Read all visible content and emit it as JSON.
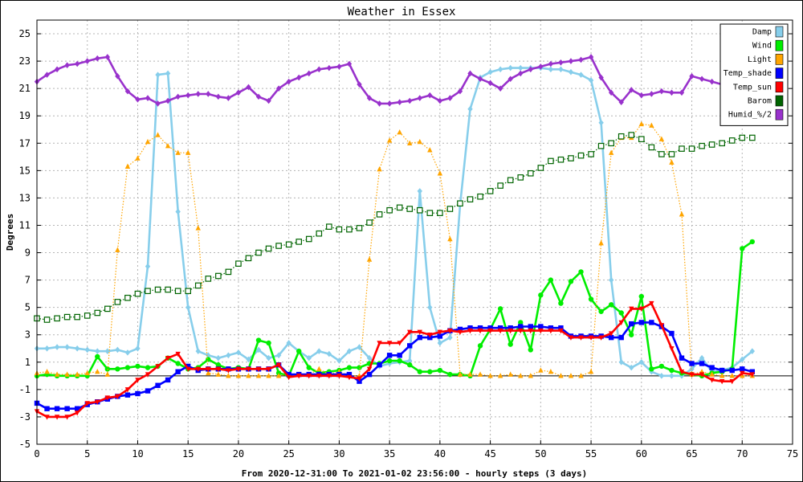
{
  "chart_data": {
    "type": "line",
    "title": "Weather in Essex",
    "xlabel": "From 2020-12-31:00 To 2021-01-02 23:56:00 - hourly steps (3 days)",
    "ylabel": "Degrees",
    "xlim": [
      0,
      75
    ],
    "ylim": [
      -5,
      26
    ],
    "x_ticks": [
      0,
      5,
      10,
      15,
      20,
      25,
      30,
      35,
      40,
      45,
      50,
      55,
      60,
      65,
      70,
      75
    ],
    "y_ticks": [
      -5,
      -3,
      -1,
      1,
      3,
      5,
      7,
      9,
      11,
      13,
      15,
      17,
      19,
      21,
      23,
      25
    ],
    "grid": true,
    "legend_position": "top-right",
    "series": [
      {
        "name": "Damp",
        "color": "#87ceeb",
        "marker": "diamond",
        "line": "solid",
        "values": [
          2.0,
          2.0,
          2.1,
          2.1,
          2.0,
          1.9,
          1.8,
          1.8,
          1.9,
          1.7,
          2.0,
          8.0,
          22.0,
          22.1,
          12.0,
          5.0,
          1.8,
          1.5,
          1.3,
          1.5,
          1.7,
          1.2,
          1.9,
          1.3,
          1.5,
          2.4,
          1.8,
          1.3,
          1.8,
          1.6,
          1.1,
          1.8,
          2.1,
          1.3,
          0.7,
          0.9,
          1.0,
          1.1,
          13.5,
          5.0,
          2.4,
          2.8,
          12.5,
          19.5,
          21.8,
          22.2,
          22.4,
          22.5,
          22.5,
          22.5,
          22.5,
          22.4,
          22.4,
          22.2,
          22.0,
          21.6,
          18.5,
          7.0,
          1.0,
          0.6,
          1.0,
          0.3,
          0.0,
          0.0,
          0.0,
          0.5,
          1.3,
          0.3,
          0.4,
          0.6,
          1.2,
          1.8
        ]
      },
      {
        "name": "Wind",
        "color": "#00ee00",
        "marker": "circle",
        "line": "solid",
        "values": [
          0.0,
          0.1,
          0.0,
          0.0,
          0.0,
          0.0,
          1.4,
          0.5,
          0.5,
          0.6,
          0.7,
          0.6,
          0.7,
          1.3,
          0.9,
          0.5,
          0.6,
          1.2,
          0.8,
          0.5,
          0.6,
          0.5,
          2.6,
          2.4,
          0.2,
          0.0,
          1.8,
          0.6,
          0.2,
          0.3,
          0.4,
          0.6,
          0.6,
          0.9,
          0.9,
          1.1,
          1.1,
          0.8,
          0.3,
          0.3,
          0.4,
          0.1,
          0.1,
          0.0,
          2.2,
          3.4,
          4.9,
          2.3,
          3.9,
          1.9,
          5.9,
          7.0,
          5.3,
          6.9,
          7.6,
          5.6,
          4.7,
          5.2,
          4.6,
          3.0,
          5.8,
          0.5,
          0.7,
          0.4,
          0.2,
          0.1,
          0.0,
          0.2,
          0.3,
          0.5,
          9.3,
          9.8
        ]
      },
      {
        "name": "Light",
        "color": "#ffa500",
        "marker": "triangle",
        "line": "dotted",
        "values": [
          0.2,
          0.3,
          0.1,
          0.1,
          0.1,
          0.2,
          0.3,
          0.1,
          9.2,
          15.3,
          15.9,
          17.1,
          17.6,
          16.8,
          16.3,
          16.3,
          10.8,
          0.2,
          0.1,
          0.0,
          0.0,
          0.0,
          0.0,
          0.0,
          0.0,
          0.1,
          0.1,
          0.1,
          0.5,
          0.1,
          0.3,
          0.0,
          0.0,
          8.5,
          15.1,
          17.2,
          17.8,
          17.0,
          17.1,
          16.5,
          14.8,
          10.0,
          0.1,
          0.1,
          0.1,
          0.0,
          0.0,
          0.1,
          0.0,
          0.0,
          0.4,
          0.3,
          0.0,
          0.0,
          0.0,
          0.3,
          9.7,
          16.3,
          17.4,
          17.4,
          18.4,
          18.3,
          17.3,
          15.6,
          11.8,
          0.1,
          0.3,
          0.1,
          0.0,
          0.0,
          0.0,
          0.0
        ]
      },
      {
        "name": "Temp_shade",
        "color": "#0000ff",
        "marker": "square",
        "line": "solid",
        "values": [
          -2.0,
          -2.4,
          -2.4,
          -2.4,
          -2.4,
          -2.1,
          -1.9,
          -1.7,
          -1.5,
          -1.4,
          -1.3,
          -1.1,
          -0.7,
          -0.3,
          0.3,
          0.7,
          0.4,
          0.5,
          0.5,
          0.5,
          0.5,
          0.5,
          0.5,
          0.5,
          0.8,
          0.1,
          0.1,
          0.1,
          0.1,
          0.1,
          0.1,
          0.1,
          -0.4,
          0.1,
          0.8,
          1.5,
          1.5,
          2.2,
          2.8,
          2.8,
          2.9,
          3.3,
          3.4,
          3.5,
          3.5,
          3.5,
          3.5,
          3.5,
          3.6,
          3.6,
          3.6,
          3.5,
          3.5,
          2.9,
          2.9,
          2.9,
          2.9,
          2.8,
          2.8,
          3.8,
          3.9,
          3.9,
          3.6,
          3.1,
          1.3,
          0.9,
          0.9,
          0.6,
          0.4,
          0.4,
          0.5,
          0.3
        ]
      },
      {
        "name": "Temp_sun",
        "color": "#ff0000",
        "marker": "triangle-down",
        "line": "solid",
        "values": [
          -2.6,
          -3.0,
          -3.0,
          -3.0,
          -2.7,
          -2.0,
          -1.9,
          -1.6,
          -1.5,
          -1.0,
          -0.3,
          0.1,
          0.7,
          1.3,
          1.6,
          0.5,
          0.5,
          0.5,
          0.5,
          0.4,
          0.5,
          0.5,
          0.5,
          0.5,
          0.8,
          -0.1,
          0.0,
          0.0,
          0.0,
          0.0,
          0.0,
          -0.1,
          -0.2,
          0.5,
          2.4,
          2.4,
          2.4,
          3.2,
          3.2,
          3.0,
          3.2,
          3.3,
          3.2,
          3.3,
          3.3,
          3.3,
          3.3,
          3.3,
          3.3,
          3.3,
          3.3,
          3.3,
          3.3,
          2.8,
          2.8,
          2.8,
          2.8,
          3.1,
          3.9,
          4.9,
          4.9,
          5.3,
          3.7,
          2.0,
          0.3,
          0.1,
          0.1,
          -0.3,
          -0.4,
          -0.4,
          0.2,
          0.1
        ]
      },
      {
        "name": "Barom",
        "color": "#006400",
        "marker": "square-open",
        "line": "dotted",
        "values": [
          4.2,
          4.1,
          4.2,
          4.3,
          4.3,
          4.4,
          4.6,
          4.9,
          5.4,
          5.7,
          6.0,
          6.2,
          6.3,
          6.3,
          6.2,
          6.2,
          6.6,
          7.1,
          7.3,
          7.6,
          8.2,
          8.6,
          9.0,
          9.3,
          9.5,
          9.6,
          9.8,
          10.0,
          10.4,
          10.9,
          10.7,
          10.7,
          10.8,
          11.2,
          11.8,
          12.1,
          12.3,
          12.2,
          12.1,
          11.9,
          11.9,
          12.2,
          12.6,
          12.9,
          13.1,
          13.5,
          13.9,
          14.3,
          14.5,
          14.8,
          15.2,
          15.7,
          15.8,
          15.9,
          16.1,
          16.2,
          16.8,
          17.0,
          17.5,
          17.6,
          17.3,
          16.7,
          16.2,
          16.2,
          16.6,
          16.6,
          16.8,
          16.9,
          17.0,
          17.2,
          17.4,
          17.4
        ]
      },
      {
        "name": "Humid_%/2",
        "color": "#9932cc",
        "marker": "diamond",
        "line": "solid",
        "values": [
          21.5,
          22.0,
          22.4,
          22.7,
          22.8,
          23.0,
          23.2,
          23.3,
          21.9,
          20.8,
          20.2,
          20.3,
          19.9,
          20.1,
          20.4,
          20.5,
          20.6,
          20.6,
          20.4,
          20.3,
          20.7,
          21.1,
          20.4,
          20.1,
          21.0,
          21.5,
          21.8,
          22.1,
          22.4,
          22.5,
          22.6,
          22.8,
          21.3,
          20.3,
          19.9,
          19.9,
          20.0,
          20.1,
          20.3,
          20.5,
          20.1,
          20.3,
          20.8,
          22.1,
          21.7,
          21.4,
          21.0,
          21.7,
          22.1,
          22.4,
          22.6,
          22.8,
          22.9,
          23.0,
          23.1,
          23.3,
          21.8,
          20.7,
          20.0,
          20.9,
          20.5,
          20.6,
          20.8,
          20.7,
          20.7,
          21.9,
          21.7,
          21.5,
          21.3,
          21.4,
          21.3,
          21.3
        ]
      }
    ]
  }
}
